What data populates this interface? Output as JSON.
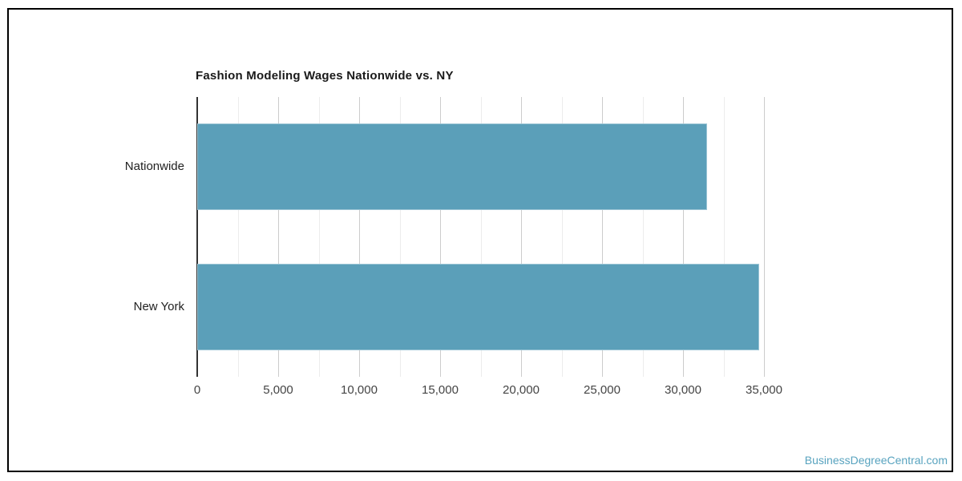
{
  "chart_data": {
    "type": "bar",
    "orientation": "horizontal",
    "title": "Fashion Modeling Wages Nationwide vs. NY",
    "categories": [
      "Nationwide",
      "New York"
    ],
    "values": [
      31500,
      34700
    ],
    "xlabel": "",
    "ylabel": "",
    "xlim": [
      0,
      35000
    ],
    "x_major_tick_step": 5000,
    "x_minor_tick_step": 2500,
    "x_tick_labels": [
      "0",
      "5,000",
      "10,000",
      "15,000",
      "20,000",
      "25,000",
      "30,000",
      "35,000"
    ],
    "grid": "vertical-only",
    "legend": "none",
    "bar_color": "#5B9FB9",
    "gridline_major_color": "#cccccc",
    "gridline_minor_color": "#ececec",
    "axis_line_color": "#333333"
  },
  "watermark": {
    "text": "BusinessDegreeCentral.com",
    "color": "#58A3BF"
  }
}
